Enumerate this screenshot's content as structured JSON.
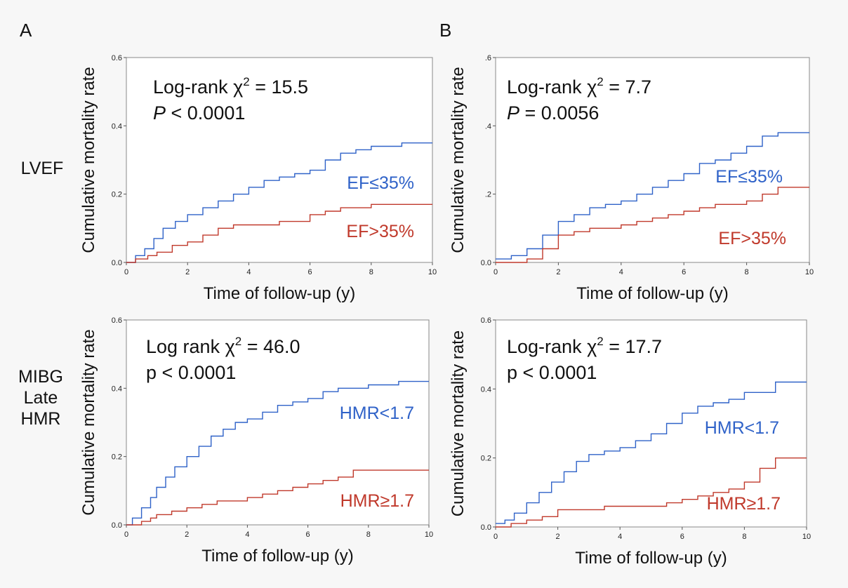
{
  "figure": {
    "panel_labels": [
      "A",
      "B"
    ],
    "row_labels": [
      [
        "LVEF"
      ],
      [
        "MIBG",
        "Late",
        "HMR"
      ]
    ],
    "colors": {
      "high_risk": "#2f62c8",
      "low_risk": "#c0392b"
    }
  },
  "chart_data": [
    {
      "type": "line",
      "step": true,
      "title": "",
      "xlabel": "Time of follow-up (y)",
      "ylabel": "Cumulative mortality rate",
      "xlim": [
        0,
        10
      ],
      "ylim": [
        0,
        0.6
      ],
      "xticks": [
        "0",
        "2",
        "4",
        "6",
        "8",
        "10"
      ],
      "yticks": [
        "0.0",
        "0.2",
        "0.4",
        "0.6"
      ],
      "annotation": {
        "line1_prefix": "Log-rank χ",
        "sup": "2",
        "line1_suffix": " = 15.5",
        "p_label": "P",
        "p_rest": " < 0.0001"
      },
      "series": [
        {
          "name": "EF≤35%",
          "x": [
            0,
            0.3,
            0.6,
            0.9,
            1.2,
            1.6,
            2.0,
            2.5,
            3.0,
            3.5,
            4.0,
            4.5,
            5.0,
            5.5,
            6.0,
            6.5,
            7.0,
            7.5,
            8.0,
            8.5,
            9.0,
            9.5,
            10
          ],
          "y": [
            0,
            0.02,
            0.04,
            0.07,
            0.1,
            0.12,
            0.14,
            0.16,
            0.18,
            0.2,
            0.22,
            0.24,
            0.25,
            0.26,
            0.27,
            0.3,
            0.32,
            0.33,
            0.34,
            0.34,
            0.35,
            0.35,
            0.35
          ]
        },
        {
          "name": "EF>35%",
          "x": [
            0,
            0.3,
            0.7,
            1.0,
            1.5,
            2.0,
            2.5,
            3.0,
            3.5,
            4.0,
            5.0,
            6.0,
            6.5,
            7.0,
            8.0,
            10
          ],
          "y": [
            0,
            0.01,
            0.02,
            0.03,
            0.05,
            0.06,
            0.08,
            0.1,
            0.11,
            0.11,
            0.12,
            0.14,
            0.15,
            0.16,
            0.17,
            0.17
          ]
        }
      ]
    },
    {
      "type": "line",
      "step": true,
      "title": "",
      "xlabel": "Time of follow-up (y)",
      "ylabel": "Cumulative mortality rate",
      "xlim": [
        0,
        10
      ],
      "ylim": [
        0,
        0.6
      ],
      "xticks": [
        "0",
        "2",
        "4",
        "6",
        "8",
        "10"
      ],
      "yticks": [
        "0.0",
        ".2",
        ".4",
        ".6"
      ],
      "annotation": {
        "line1_prefix": "Log-rank χ",
        "sup": "2",
        "line1_suffix": " = 7.7",
        "p_label": "P",
        "p_rest": " = 0.0056"
      },
      "series": [
        {
          "name": "EF≤35%",
          "x": [
            0,
            0.5,
            1.0,
            1.5,
            2.0,
            2.5,
            3.0,
            3.5,
            4.0,
            4.5,
            5.0,
            5.5,
            6.0,
            6.5,
            7.0,
            7.5,
            8.0,
            8.5,
            9.0,
            10
          ],
          "y": [
            0.01,
            0.02,
            0.04,
            0.08,
            0.12,
            0.14,
            0.16,
            0.17,
            0.18,
            0.2,
            0.22,
            0.24,
            0.26,
            0.29,
            0.3,
            0.32,
            0.34,
            0.37,
            0.38,
            0.38
          ]
        },
        {
          "name": "EF>35%",
          "x": [
            0,
            0.5,
            1.0,
            1.5,
            2.0,
            2.5,
            3.0,
            3.5,
            4.0,
            4.5,
            5.0,
            5.5,
            6.0,
            6.5,
            7.0,
            8.0,
            8.5,
            9.0,
            10
          ],
          "y": [
            0,
            0,
            0.01,
            0.04,
            0.08,
            0.09,
            0.1,
            0.1,
            0.11,
            0.12,
            0.13,
            0.14,
            0.15,
            0.16,
            0.17,
            0.18,
            0.2,
            0.22,
            0.22
          ]
        }
      ]
    },
    {
      "type": "line",
      "step": true,
      "title": "",
      "xlabel": "Time of follow-up (y)",
      "ylabel": "Cumulative mortality rate",
      "xlim": [
        0,
        10
      ],
      "ylim": [
        0,
        0.6
      ],
      "xticks": [
        "0",
        "2",
        "4",
        "6",
        "8",
        "10"
      ],
      "yticks": [
        "0.0",
        "0.2",
        "0.4",
        "0.6"
      ],
      "annotation": {
        "line1_prefix": "Log rank χ",
        "sup": "2",
        "line1_suffix": " = 46.0",
        "p_label": "p",
        "p_rest": " < 0.0001"
      },
      "series": [
        {
          "name": "HMR<1.7",
          "x": [
            0,
            0.2,
            0.5,
            0.8,
            1.0,
            1.3,
            1.6,
            2.0,
            2.4,
            2.8,
            3.2,
            3.6,
            4.0,
            4.5,
            5.0,
            5.5,
            6.0,
            6.5,
            7.0,
            8.0,
            9.0,
            10
          ],
          "y": [
            0,
            0.02,
            0.05,
            0.08,
            0.11,
            0.14,
            0.17,
            0.2,
            0.23,
            0.26,
            0.28,
            0.3,
            0.31,
            0.33,
            0.35,
            0.36,
            0.37,
            0.39,
            0.4,
            0.41,
            0.42,
            0.42
          ]
        },
        {
          "name": "HMR≥1.7",
          "x": [
            0,
            0.5,
            0.8,
            1.0,
            1.5,
            2.0,
            2.5,
            3.0,
            3.5,
            4.0,
            4.5,
            5.0,
            5.5,
            6.0,
            6.5,
            7.0,
            7.5,
            10
          ],
          "y": [
            0,
            0.01,
            0.02,
            0.03,
            0.04,
            0.05,
            0.06,
            0.07,
            0.07,
            0.08,
            0.09,
            0.1,
            0.11,
            0.12,
            0.13,
            0.14,
            0.16,
            0.16
          ]
        }
      ]
    },
    {
      "type": "line",
      "step": true,
      "title": "",
      "xlabel": "Time of follow-up (y)",
      "ylabel": "Cumulative mortality rate",
      "xlim": [
        0,
        10
      ],
      "ylim": [
        0,
        0.6
      ],
      "xticks": [
        "0",
        "2",
        "4",
        "6",
        "8",
        "10"
      ],
      "yticks": [
        "0.0",
        "0.2",
        "0.4",
        "0.6"
      ],
      "annotation": {
        "line1_prefix": "Log-rank χ",
        "sup": "2",
        "line1_suffix": " = 17.7",
        "p_label": "p",
        "p_rest": " < 0.0001"
      },
      "series": [
        {
          "name": "HMR<1.7",
          "x": [
            0,
            0.3,
            0.6,
            1.0,
            1.4,
            1.8,
            2.2,
            2.6,
            3.0,
            3.5,
            4.0,
            4.5,
            5.0,
            5.5,
            6.0,
            6.5,
            7.0,
            7.5,
            8.0,
            9.0,
            10
          ],
          "y": [
            0.01,
            0.02,
            0.04,
            0.07,
            0.1,
            0.13,
            0.16,
            0.19,
            0.21,
            0.22,
            0.23,
            0.25,
            0.27,
            0.3,
            0.33,
            0.35,
            0.36,
            0.37,
            0.39,
            0.42,
            0.42
          ]
        },
        {
          "name": "HMR≥1.7",
          "x": [
            0,
            0.5,
            1.0,
            1.5,
            2.0,
            2.5,
            3.0,
            3.5,
            4.0,
            4.5,
            5.0,
            5.5,
            6.0,
            6.5,
            7.0,
            7.5,
            8.0,
            8.5,
            9.0,
            10
          ],
          "y": [
            0,
            0.01,
            0.02,
            0.03,
            0.05,
            0.05,
            0.05,
            0.06,
            0.06,
            0.06,
            0.06,
            0.07,
            0.08,
            0.09,
            0.1,
            0.11,
            0.13,
            0.17,
            0.2,
            0.2
          ]
        }
      ]
    }
  ]
}
